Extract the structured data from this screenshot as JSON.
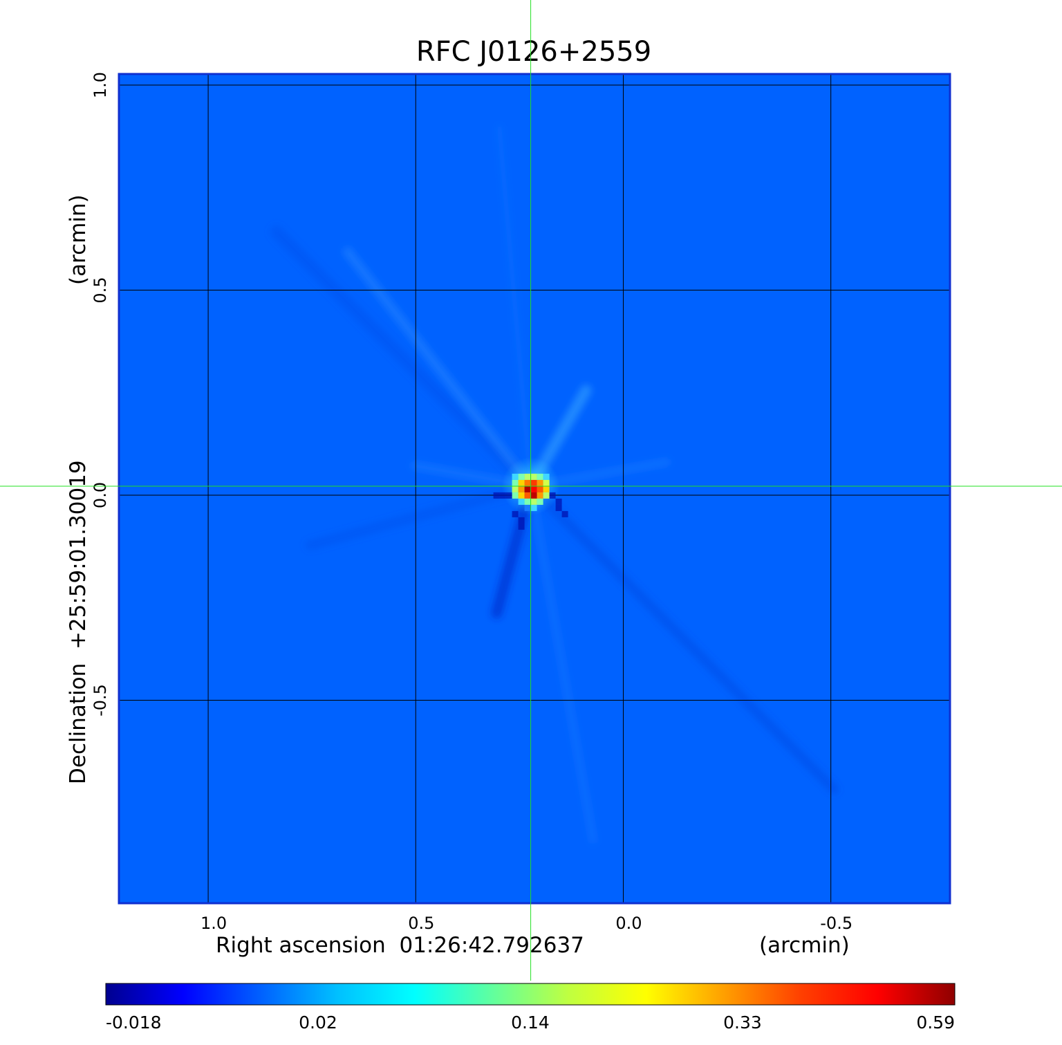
{
  "chart_data": {
    "type": "heatmap",
    "title": "RFC J0126+2559",
    "xlabel": "Right ascension  01:26:42.792637",
    "xunit": "(arcmin)",
    "ylabel": "Declination  +25:59:01.30019",
    "yunit": "(arcmin)",
    "x_ticks": [
      {
        "value": 1.0,
        "label": "1.0"
      },
      {
        "value": 0.5,
        "label": "0.5"
      },
      {
        "value": 0.0,
        "label": "0.0"
      },
      {
        "value": -0.5,
        "label": "-0.5"
      }
    ],
    "y_ticks": [
      {
        "value": 1.0,
        "label": "1.0"
      },
      {
        "value": 0.5,
        "label": "0.5"
      },
      {
        "value": 0.0,
        "label": "0.0"
      },
      {
        "value": -0.5,
        "label": "-0.5"
      }
    ],
    "xlim": [
      1.215,
      -0.787
    ],
    "ylim": [
      -0.995,
      1.027
    ],
    "crosshair": {
      "x": 0.223,
      "y": 0.022
    },
    "grid": true,
    "colormap": "jet",
    "colorbar": {
      "ticks": [
        "-0.018",
        "0.02",
        "0.14",
        "0.33",
        "0.59"
      ],
      "colors": [
        "#00008f",
        "#0000ff",
        "#0060ff",
        "#00c0ff",
        "#00ffff",
        "#60ff9f",
        "#c0ff40",
        "#ffff00",
        "#ffa000",
        "#ff4000",
        "#ff0000",
        "#8f0000"
      ]
    },
    "source": {
      "x": 0.223,
      "y": 0.022,
      "peak": 0.59
    },
    "background_color": "#0062ff",
    "frame_color": "#1030d0",
    "title_color": "#0a18d8",
    "crosshair_color": "#22e022"
  }
}
